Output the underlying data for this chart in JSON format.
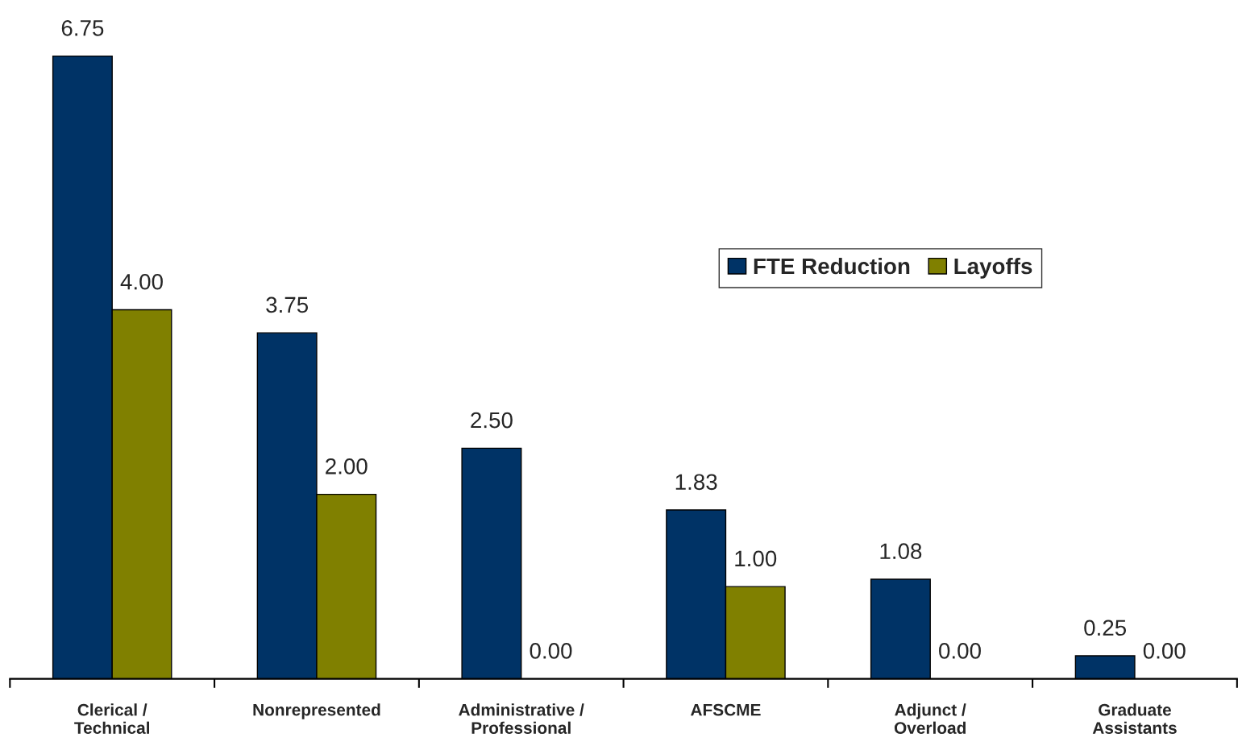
{
  "chart_data": {
    "type": "bar",
    "categories": [
      "Clerical /\nTechnical",
      "Nonrepresented",
      "Administrative /\nProfessional",
      "AFSCME",
      "Adjunct /\nOverload",
      "Graduate\nAssistants"
    ],
    "series": [
      {
        "name": "FTE Reduction",
        "color": "#003366",
        "values": [
          6.75,
          3.75,
          2.5,
          1.83,
          1.08,
          0.25
        ],
        "value_labels": [
          "6.75",
          "3.75",
          "2.50",
          "1.83",
          "1.08",
          "0.25"
        ]
      },
      {
        "name": "Layoffs",
        "color": "#808000",
        "values": [
          4.0,
          2.0,
          0.0,
          1.0,
          0.0,
          0.0
        ],
        "value_labels": [
          "4.00",
          "2.00",
          "0.00",
          "1.00",
          "0.00",
          "0.00"
        ]
      }
    ],
    "legend": "top right",
    "grid": false
  }
}
